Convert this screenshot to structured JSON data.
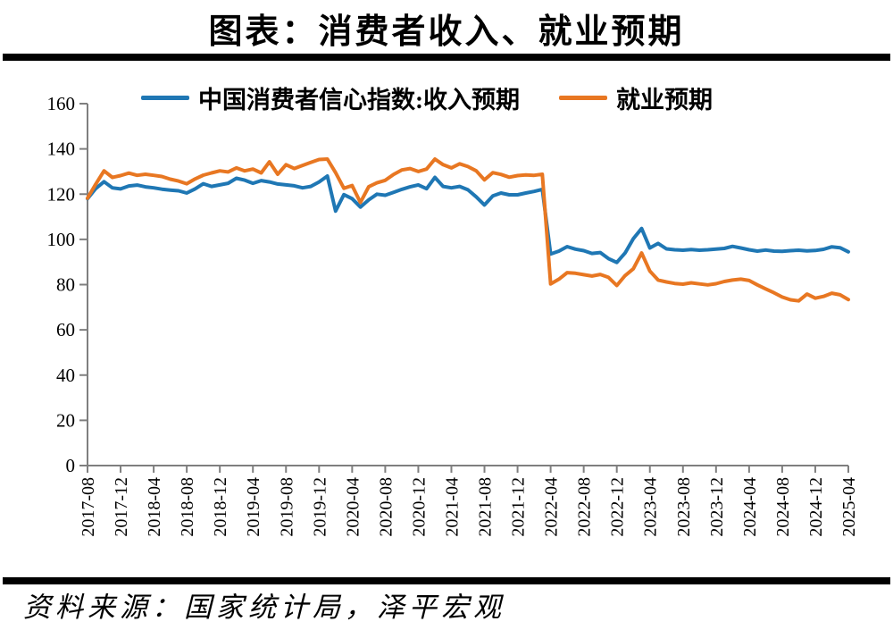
{
  "page": {
    "title": "图表：消费者收入、就业预期",
    "source": "资料来源：国家统计局，泽平宏观"
  },
  "colors": {
    "income_line": "#1f77b4",
    "employment_line": "#e87722",
    "axis": "#7f7f7f",
    "divider_bar": "#000000"
  },
  "chart_data": {
    "type": "line",
    "title": "图表：消费者收入、就业预期",
    "xlabel": "",
    "ylabel": "",
    "ylim": [
      0,
      160
    ],
    "ytick_step": 20,
    "ytick_labels": [
      "0",
      "20",
      "40",
      "60",
      "80",
      "100",
      "120",
      "140",
      "160"
    ],
    "grid": false,
    "legend_position": "top",
    "x_tick_every": 4,
    "x_tick_labels": [
      "2017-08",
      "2017-12",
      "2018-04",
      "2018-08",
      "2018-12",
      "2019-04",
      "2019-08",
      "2019-12",
      "2020-04",
      "2020-08",
      "2020-12",
      "2021-04",
      "2021-08",
      "2021-12",
      "2022-04",
      "2022-08",
      "2022-12",
      "2023-04",
      "2023-08",
      "2023-12",
      "2024-04",
      "2024-08",
      "2024-12",
      "2025-04"
    ],
    "categories": [
      "2017-08",
      "2017-09",
      "2017-10",
      "2017-11",
      "2017-12",
      "2018-01",
      "2018-02",
      "2018-03",
      "2018-04",
      "2018-05",
      "2018-06",
      "2018-07",
      "2018-08",
      "2018-09",
      "2018-10",
      "2018-11",
      "2018-12",
      "2019-01",
      "2019-02",
      "2019-03",
      "2019-04",
      "2019-05",
      "2019-06",
      "2019-07",
      "2019-08",
      "2019-09",
      "2019-10",
      "2019-11",
      "2019-12",
      "2020-01",
      "2020-02",
      "2020-03",
      "2020-04",
      "2020-05",
      "2020-06",
      "2020-07",
      "2020-08",
      "2020-09",
      "2020-10",
      "2020-11",
      "2020-12",
      "2021-01",
      "2021-02",
      "2021-03",
      "2021-04",
      "2021-05",
      "2021-06",
      "2021-07",
      "2021-08",
      "2021-09",
      "2021-10",
      "2021-11",
      "2021-12",
      "2022-01",
      "2022-02",
      "2022-03",
      "2022-04",
      "2022-05",
      "2022-06",
      "2022-07",
      "2022-08",
      "2022-09",
      "2022-10",
      "2022-11",
      "2022-12",
      "2023-01",
      "2023-02",
      "2023-03",
      "2023-04",
      "2023-05",
      "2023-06",
      "2023-07",
      "2023-08",
      "2023-09",
      "2023-10",
      "2023-11",
      "2023-12",
      "2024-01",
      "2024-02",
      "2024-03",
      "2024-04",
      "2024-05",
      "2024-06",
      "2024-07",
      "2024-08",
      "2024-09",
      "2024-10",
      "2024-11",
      "2024-12",
      "2025-01",
      "2025-02",
      "2025-03",
      "2025-04"
    ],
    "series": [
      {
        "name": "中国消费者信心指数:收入预期",
        "color": "#1f77b4",
        "values": [
          118.0,
          122.5,
          125.5,
          122.8,
          122.3,
          123.6,
          124.0,
          123.2,
          122.8,
          122.2,
          121.8,
          121.5,
          120.5,
          122.3,
          124.6,
          123.4,
          124.1,
          124.8,
          127.0,
          126.2,
          124.8,
          126.0,
          125.4,
          124.5,
          124.1,
          123.7,
          122.8,
          123.4,
          125.4,
          128.0,
          112.5,
          119.8,
          118.0,
          114.3,
          117.5,
          120.0,
          119.5,
          120.8,
          122.1,
          123.2,
          124.1,
          122.4,
          127.4,
          123.4,
          122.8,
          123.4,
          121.9,
          118.8,
          115.2,
          119.2,
          120.5,
          119.7,
          119.7,
          120.5,
          121.2,
          122.1,
          93.5,
          94.8,
          96.8,
          95.7,
          95.0,
          93.8,
          94.2,
          91.5,
          89.8,
          94.0,
          100.3,
          104.8,
          96.2,
          98.2,
          95.8,
          95.4,
          95.2,
          95.5,
          95.2,
          95.4,
          95.7,
          96.0,
          96.9,
          96.2,
          95.4,
          94.8,
          95.3,
          94.8,
          94.7,
          95.0,
          95.2,
          94.9,
          95.1,
          95.6,
          96.7,
          96.3,
          94.5
        ]
      },
      {
        "name": "就业预期",
        "color": "#e87722",
        "values": [
          118.2,
          124.5,
          130.3,
          127.4,
          128.2,
          129.3,
          128.3,
          128.8,
          128.3,
          127.8,
          126.6,
          125.8,
          124.6,
          126.7,
          128.4,
          129.4,
          130.3,
          129.8,
          131.6,
          130.3,
          131.1,
          129.4,
          134.3,
          128.8,
          133.0,
          131.3,
          132.7,
          134.0,
          135.3,
          135.5,
          129.5,
          122.6,
          123.8,
          116.3,
          123.3,
          125.0,
          126.1,
          128.7,
          130.7,
          131.3,
          130.0,
          131.1,
          135.5,
          133.0,
          131.6,
          133.4,
          132.2,
          130.3,
          126.3,
          129.5,
          128.7,
          127.5,
          128.2,
          128.5,
          128.3,
          128.8,
          80.3,
          82.4,
          85.3,
          85.0,
          84.4,
          83.8,
          84.5,
          83.2,
          79.6,
          84.0,
          87.0,
          94.0,
          86.0,
          82.0,
          81.2,
          80.5,
          80.2,
          80.8,
          80.3,
          79.9,
          80.4,
          81.4,
          82.0,
          82.4,
          81.8,
          79.9,
          78.1,
          76.4,
          74.5,
          73.3,
          72.8,
          75.8,
          74.0,
          74.8,
          76.2,
          75.5,
          73.4
        ]
      }
    ]
  }
}
